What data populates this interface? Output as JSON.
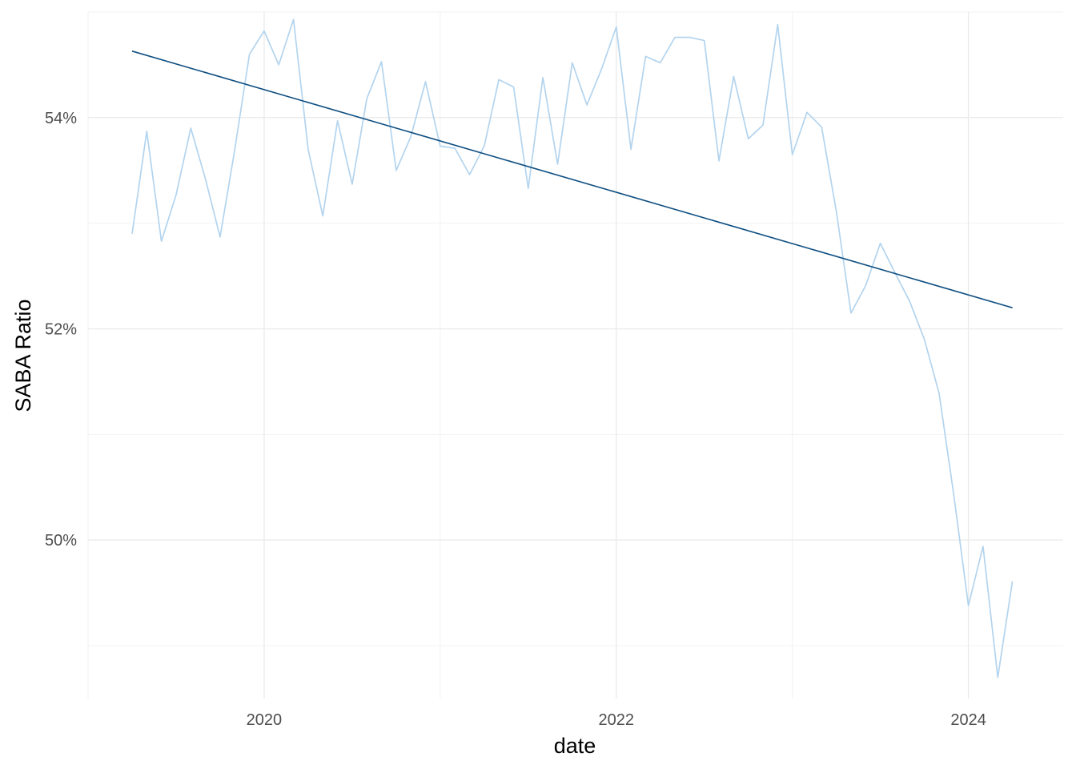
{
  "chart_data": {
    "type": "line",
    "title": "",
    "xlabel": "date",
    "ylabel": "SABA Ratio",
    "x_axis": {
      "type": "date",
      "range": [
        "2019-01-01",
        "2024-07-15"
      ],
      "ticks": [
        "2020",
        "2022",
        "2024"
      ]
    },
    "y_axis": {
      "type": "percent",
      "range": [
        48.5,
        55.0
      ],
      "ticks": [
        "50%",
        "52%",
        "54%"
      ]
    },
    "grid": true,
    "legend": "none",
    "series": [
      {
        "role": "observed",
        "color": "#b3d4ee",
        "x": [
          "2019-04",
          "2019-05",
          "2019-06",
          "2019-07",
          "2019-08",
          "2019-09",
          "2019-10",
          "2019-11",
          "2019-12",
          "2020-01",
          "2020-02",
          "2020-03",
          "2020-04",
          "2020-05",
          "2020-06",
          "2020-07",
          "2020-08",
          "2020-09",
          "2020-10",
          "2020-11",
          "2020-12",
          "2021-01",
          "2021-02",
          "2021-03",
          "2021-04",
          "2021-05",
          "2021-06",
          "2021-07",
          "2021-08",
          "2021-09",
          "2021-10",
          "2021-11",
          "2021-12",
          "2022-01",
          "2022-02",
          "2022-03",
          "2022-04",
          "2022-05",
          "2022-06",
          "2022-07",
          "2022-08",
          "2022-09",
          "2022-10",
          "2022-11",
          "2022-12",
          "2023-01",
          "2023-02",
          "2023-03",
          "2023-04",
          "2023-05",
          "2023-06",
          "2023-07",
          "2023-08",
          "2023-09",
          "2023-10",
          "2023-11",
          "2023-12",
          "2024-01",
          "2024-02",
          "2024-03",
          "2024-04"
        ],
        "y": [
          52.9,
          53.87,
          52.83,
          53.27,
          53.9,
          53.42,
          52.87,
          53.7,
          54.6,
          54.82,
          54.5,
          54.93,
          53.7,
          53.07,
          53.97,
          53.37,
          54.18,
          54.53,
          53.5,
          53.82,
          54.34,
          53.73,
          53.71,
          53.46,
          53.73,
          54.36,
          54.29,
          53.33,
          54.38,
          53.56,
          54.52,
          54.12,
          54.46,
          54.86,
          53.7,
          54.58,
          54.52,
          54.76,
          54.76,
          54.73,
          53.59,
          54.39,
          53.8,
          53.93,
          54.88,
          53.65,
          54.05,
          53.91,
          53.11,
          52.15,
          52.41,
          52.81,
          52.53,
          52.26,
          51.9,
          51.39,
          50.43,
          49.38,
          49.94,
          48.7,
          49.61
        ]
      },
      {
        "role": "trend",
        "color": "#0f4f82",
        "x": [
          "2019-04",
          "2024-04"
        ],
        "y": [
          54.63,
          52.2
        ]
      }
    ]
  }
}
